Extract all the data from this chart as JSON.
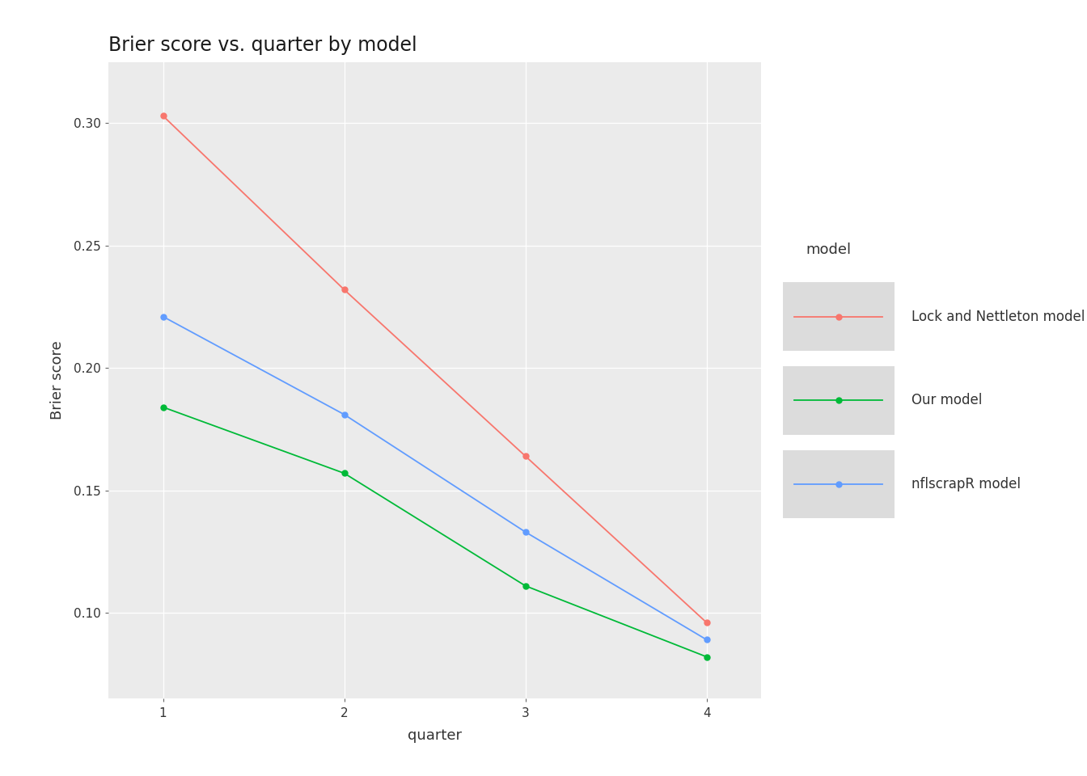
{
  "title": "Brier score vs. quarter by model",
  "xlabel": "quarter",
  "ylabel": "Brier score",
  "quarters": [
    1,
    2,
    3,
    4
  ],
  "series": [
    {
      "name": "Lock and Nettleton model",
      "values": [
        0.303,
        0.232,
        0.164,
        0.096
      ],
      "color": "#F8766D",
      "marker": "o"
    },
    {
      "name": "Our model",
      "values": [
        0.184,
        0.157,
        0.111,
        0.082
      ],
      "color": "#00BA38",
      "marker": "o"
    },
    {
      "name": "nflscrapR model",
      "values": [
        0.221,
        0.181,
        0.133,
        0.089
      ],
      "color": "#619CFF",
      "marker": "o"
    }
  ],
  "ylim": [
    0.065,
    0.325
  ],
  "yticks": [
    0.1,
    0.15,
    0.2,
    0.25,
    0.3
  ],
  "xlim": [
    0.7,
    4.3
  ],
  "background_color": "#EBEBEB",
  "grid_color": "#FFFFFF",
  "title_fontsize": 17,
  "axis_label_fontsize": 13,
  "tick_fontsize": 11,
  "legend_title_fontsize": 13,
  "legend_fontsize": 12,
  "line_width": 1.3,
  "marker_size": 5
}
